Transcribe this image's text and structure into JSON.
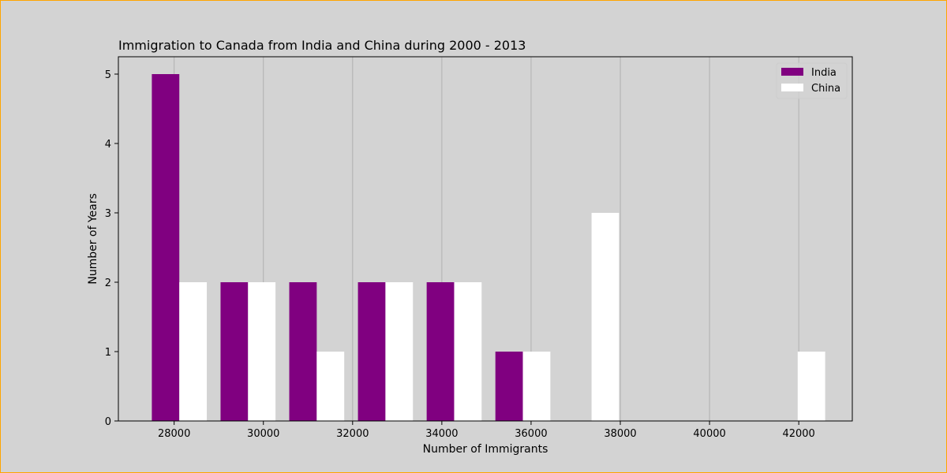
{
  "chart_data": {
    "type": "bar",
    "title": "Immigration to Canada from India and China during 2000 - 2013",
    "xlabel": "Number of Immigrants",
    "ylabel": "Number of Years",
    "xlim": [
      26750,
      43200
    ],
    "ylim": [
      0,
      5.25
    ],
    "xticks": [
      28000,
      30000,
      32000,
      34000,
      36000,
      38000,
      40000,
      42000
    ],
    "yticks": [
      0,
      1,
      2,
      3,
      4,
      5
    ],
    "grid": "x",
    "legend_position": "top-right",
    "bin_edges": [
      27500,
      29040,
      30580,
      32120,
      33660,
      35200,
      36740,
      38280,
      39820,
      41360,
      42900
    ],
    "series": [
      {
        "name": "India",
        "color": "#800080",
        "values": [
          5,
          2,
          2,
          2,
          2,
          1,
          0,
          0,
          0,
          0
        ]
      },
      {
        "name": "China",
        "color": "#ffffff",
        "values": [
          2,
          2,
          1,
          2,
          2,
          1,
          3,
          0,
          0,
          1
        ]
      }
    ]
  },
  "colors": {
    "background": "#d3d3d3",
    "border": "#ffa500",
    "grid": "#b0b0b0"
  }
}
